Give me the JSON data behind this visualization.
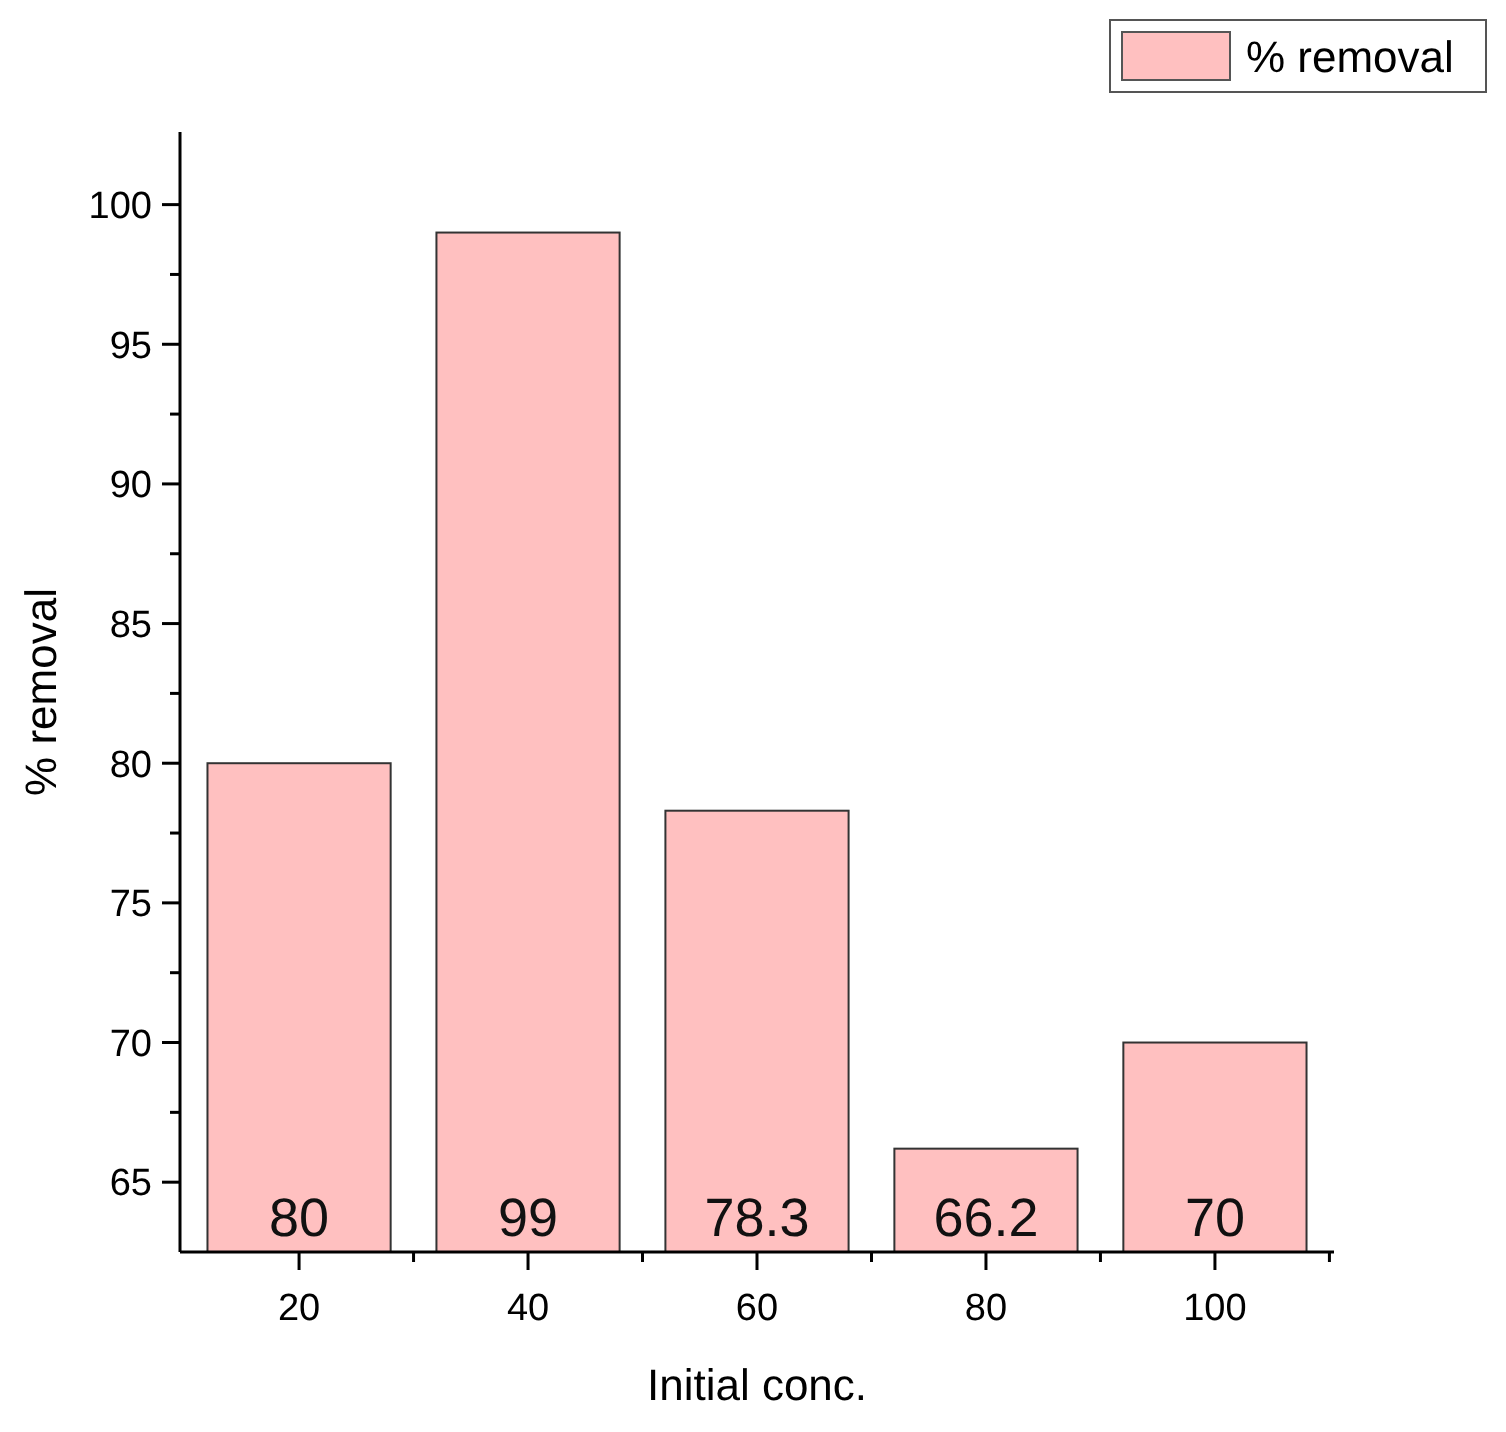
{
  "chart_data": {
    "type": "bar",
    "xlabel": "Initial conc.",
    "ylabel": "% removal",
    "categories": [
      "20",
      "40",
      "60",
      "80",
      "100"
    ],
    "series": [
      {
        "name": "% removal",
        "color": "#ffc0c0",
        "values": [
          80,
          99,
          78.3,
          66.2,
          70
        ]
      }
    ],
    "ylim": [
      62.5,
      102.6
    ],
    "yticks": [
      65,
      {
        "value": 67.5,
        "label": null
      },
      70,
      {
        "value": 72.5,
        "label": null
      },
      75,
      {
        "value": 77.5,
        "label": null
      },
      80,
      {
        "value": 82.5,
        "label": null
      },
      85,
      {
        "value": 87.5,
        "label": null
      },
      90,
      {
        "value": 92.5,
        "label": null
      },
      95,
      {
        "value": 97.5,
        "label": null
      },
      100
    ],
    "data_labels": true,
    "legend": "top right",
    "grid": false
  }
}
